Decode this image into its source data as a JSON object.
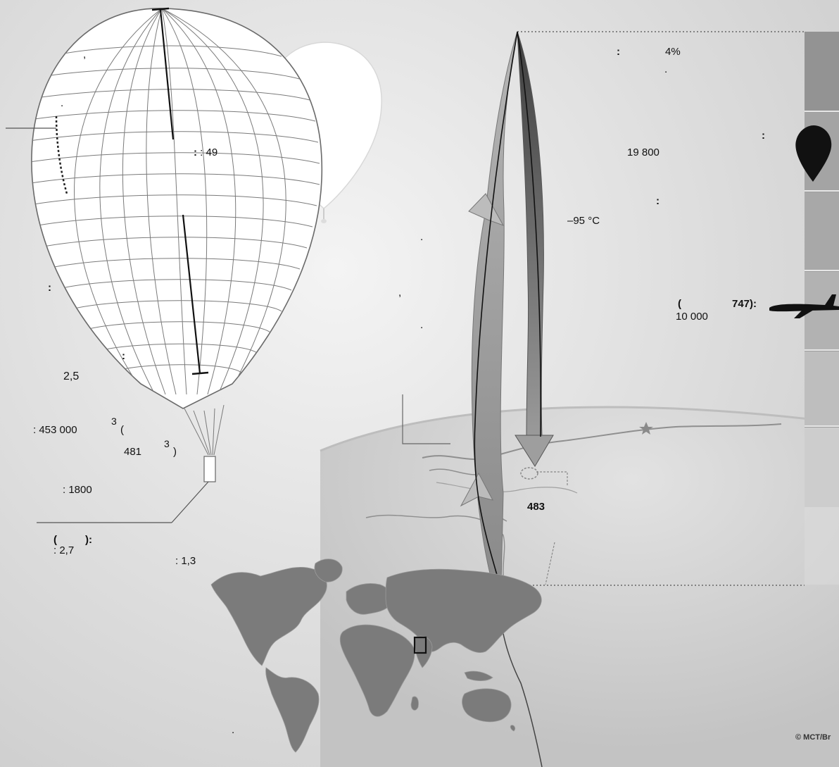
{
  "balloon": {
    "top_comma": ",",
    "top_dot": ".",
    "height_value": ": 49",
    "left_colon": ":",
    "mid_colon": ":",
    "weight_value": "2,5",
    "volume_value": ": 453 000",
    "volume_unit_power": "3",
    "volume_paren_open": "(",
    "volume_alt_value": "481",
    "volume_alt_power": "3",
    "volume_paren_close": ")",
    "payload_value": ": 1800",
    "gondola_label_open": "(",
    "gondola_label_close": "):",
    "gondola_dim_a": ": 2,7",
    "gondola_dim_b": ": 1,3"
  },
  "flight": {
    "dot_1": ".",
    "comma_1": ",",
    "dot_2": ".",
    "distance_label": "483"
  },
  "atmosphere": {
    "colon_1": ":",
    "oxygen_value": "4%",
    "dot_1": ".",
    "colon_2": ":",
    "altitude_value": "19 800",
    "colon_3": ":",
    "temperature_value": "–95 °C",
    "plane_paren": "(",
    "plane_model": "747):",
    "plane_altitude": "10 000"
  },
  "map": {
    "dot": "."
  },
  "credit": "© MCT/Br",
  "colors": {
    "balloon_fill": "#ffffff",
    "balloon_line": "#6a6a6a",
    "arrow_light": "#a9a9a9",
    "arrow_dark": "#555555",
    "land": "#7b7b7b",
    "scale_bar": "#9d9d9d",
    "silhouette": "#111111"
  },
  "icons": [
    "hot-air-balloon",
    "helium-balloon",
    "ascent-arrow",
    "descent-arrow",
    "star-icon",
    "balloon-icon",
    "airplane-icon",
    "world-map",
    "globe-horizon",
    "launch-point"
  ]
}
